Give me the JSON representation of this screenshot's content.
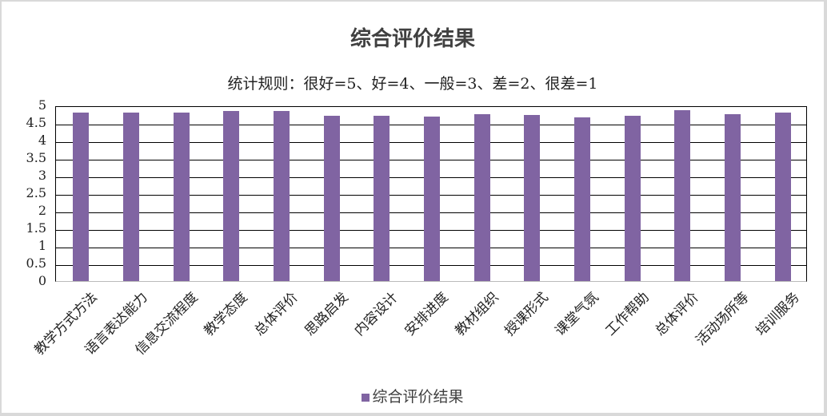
{
  "chart_data": {
    "type": "bar",
    "title": "综合评价结果",
    "subtitle": "统计规则：很好=5、好=4、一般=3、差=2、很差=1",
    "xlabel": "",
    "ylabel": "",
    "ylim": [
      0,
      5
    ],
    "yticks": [
      "0",
      "0.5",
      "1",
      "1.5",
      "2",
      "2.5",
      "3",
      "3.5",
      "4",
      "4.5",
      "5"
    ],
    "grid": true,
    "legend_position": "bottom",
    "categories": [
      "教学方式方法",
      "语言表达能力",
      "信息交流程度",
      "教学态度",
      "总体评价",
      "思路启发",
      "内容设计",
      "安排进度",
      "教材组织",
      "授课形式",
      "课堂气氛",
      "工作帮助",
      "总体评价",
      "活动场所等",
      "培训服务"
    ],
    "series": [
      {
        "name": "综合评价结果",
        "color": "#8064a2",
        "values": [
          4.8,
          4.8,
          4.8,
          4.83,
          4.83,
          4.71,
          4.71,
          4.69,
          4.75,
          4.73,
          4.66,
          4.71,
          4.87,
          4.75,
          4.8
        ]
      }
    ]
  }
}
